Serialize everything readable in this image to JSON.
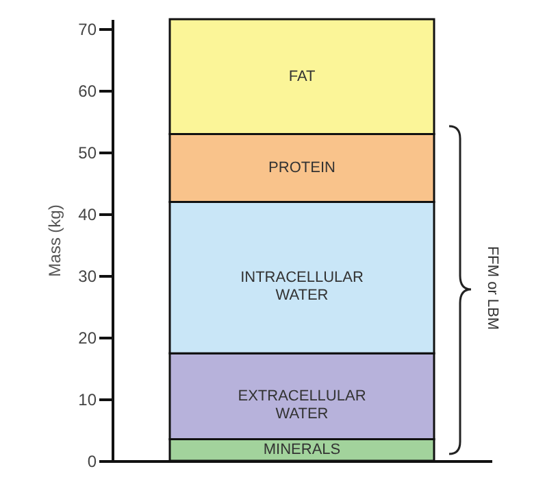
{
  "chart_data": {
    "type": "bar",
    "stacked": true,
    "categories": [
      null
    ],
    "ylabel": "Mass (kg)",
    "ylim": [
      0,
      71.5
    ],
    "yticks": [
      0,
      10,
      20,
      30,
      40,
      50,
      60,
      70
    ],
    "series": [
      {
        "name": "MINERALS",
        "color": "#a2d39c",
        "values": [
          3.5
        ]
      },
      {
        "name": "EXTRACELLULAR WATER",
        "color": "#b7b2db",
        "values": [
          13.9
        ]
      },
      {
        "name": "INTRACELLULAR WATER",
        "color": "#c9e6f7",
        "values": [
          24.5
        ]
      },
      {
        "name": "PROTEIN",
        "color": "#f9c38b",
        "values": [
          11
        ]
      },
      {
        "name": "FAT",
        "color": "#fbf598",
        "values": [
          18.6
        ]
      }
    ],
    "annotations": [
      "FFM or LBM"
    ]
  }
}
